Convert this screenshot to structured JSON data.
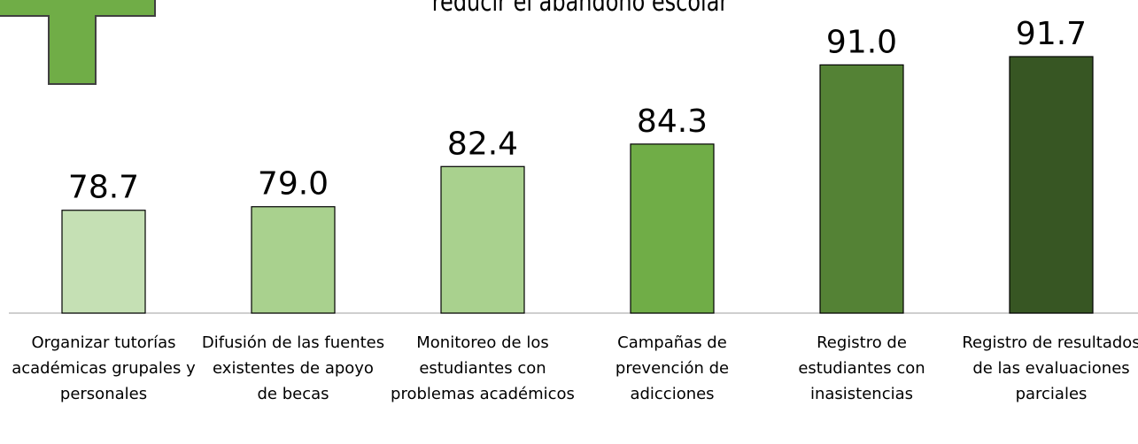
{
  "chart_data": {
    "type": "bar",
    "title": "reducir el abandono escolar",
    "categories": [
      "Organizar tutorías académicas grupales y personales",
      "Difusión de las fuentes existentes de apoyo de becas",
      "Monitoreo de los estudiantes con problemas académicos",
      "Campañas de prevención de adicciones",
      "Registro de estudiantes con inasistencias",
      "Registro de resultados de las evaluaciones parciales"
    ],
    "values": [
      78.7,
      79.0,
      82.4,
      84.3,
      91.0,
      91.7
    ],
    "value_labels": [
      "78.7",
      "79.0",
      "82.4",
      "84.3",
      "91.0",
      "91.7"
    ],
    "colors": [
      "#c5e0b4",
      "#a9d18e",
      "#a9d18e",
      "#70ad47",
      "#548235",
      "#375623"
    ],
    "ylim": [
      70,
      92
    ]
  }
}
